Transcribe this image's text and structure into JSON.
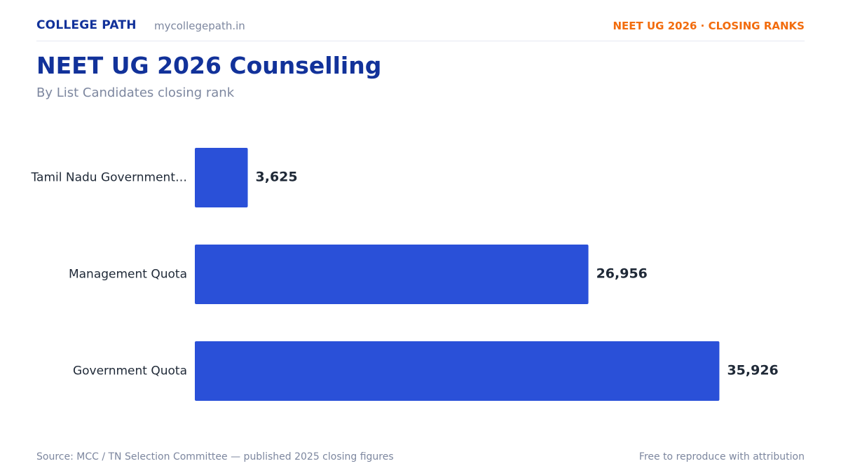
{
  "header": {
    "brand": "COLLEGE PATH",
    "site": "mycollegepath.in",
    "tag": "NEET UG 2026 · CLOSING RANKS"
  },
  "chart_data": {
    "type": "bar",
    "orientation": "horizontal",
    "title": "NEET UG 2026 Counselling",
    "subtitle": "By List Candidates closing rank",
    "categories": [
      "Tamil Nadu Government…",
      "Management Quota",
      "Government Quota"
    ],
    "values": [
      3625,
      26956,
      35926
    ],
    "value_labels": [
      "3,625",
      "26,956",
      "35,926"
    ],
    "xlabel": "",
    "ylabel": "",
    "xlim": [
      0,
      36000
    ],
    "grid": false,
    "bar_color": "#2a50d8"
  },
  "footer": {
    "source": "Source: MCC / TN Selection Committee — published 2025 closing figures",
    "note": "Free to reproduce with attribution"
  }
}
